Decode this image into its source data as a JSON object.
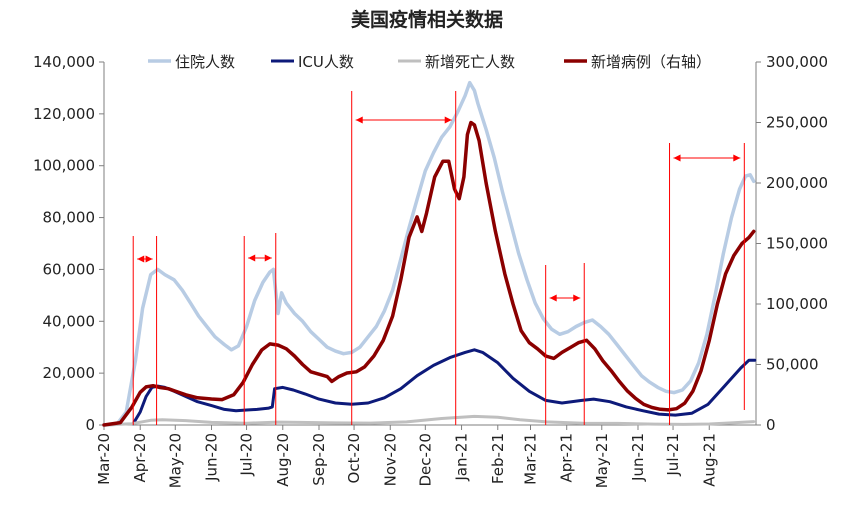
{
  "chart_data": {
    "type": "line",
    "title": "美国疫情相关数据",
    "x_ticks": [
      "Mar-20",
      "Apr-20",
      "May-20",
      "Jun-20",
      "Jul-20",
      "Aug-20",
      "Sep-20",
      "Oct-20",
      "Nov-20",
      "Dec-20",
      "Jan-21",
      "Feb-21",
      "Mar-21",
      "Apr-21",
      "May-21",
      "Jun-21",
      "Jul-21",
      "Aug-21"
    ],
    "x_range": [
      "2020-03-01",
      "2021-09-10"
    ],
    "y_left": {
      "range": [
        0,
        140000
      ],
      "ticks": [
        "0",
        "20,000",
        "40,000",
        "60,000",
        "80,000",
        "100,000",
        "120,000",
        "140,000"
      ]
    },
    "y_right": {
      "range": [
        0,
        300000
      ],
      "ticks": [
        "0",
        "50,000",
        "100,000",
        "150,000",
        "200,000",
        "250,000",
        "300,000"
      ]
    },
    "legend_position": "top",
    "grid": false,
    "series": [
      {
        "name": "住院人数",
        "axis": "left",
        "color": "#b8cce4",
        "width": 3.5,
        "points": [
          [
            "2020-03-01",
            0
          ],
          [
            "2020-03-12",
            300
          ],
          [
            "2020-03-20",
            5000
          ],
          [
            "2020-03-28",
            25000
          ],
          [
            "2020-04-03",
            45000
          ],
          [
            "2020-04-10",
            58000
          ],
          [
            "2020-04-16",
            60000
          ],
          [
            "2020-04-22",
            58000
          ],
          [
            "2020-04-30",
            56000
          ],
          [
            "2020-05-07",
            52000
          ],
          [
            "2020-05-14",
            47000
          ],
          [
            "2020-05-21",
            42000
          ],
          [
            "2020-05-28",
            38000
          ],
          [
            "2020-06-04",
            34000
          ],
          [
            "2020-06-12",
            31000
          ],
          [
            "2020-06-18",
            29000
          ],
          [
            "2020-06-24",
            30500
          ],
          [
            "2020-07-01",
            38000
          ],
          [
            "2020-07-08",
            48000
          ],
          [
            "2020-07-15",
            55000
          ],
          [
            "2020-07-21",
            59000
          ],
          [
            "2020-07-24",
            60000
          ],
          [
            "2020-07-28",
            43000
          ],
          [
            "2020-07-31",
            51000
          ],
          [
            "2020-08-04",
            47000
          ],
          [
            "2020-08-11",
            43000
          ],
          [
            "2020-08-18",
            40000
          ],
          [
            "2020-08-25",
            36000
          ],
          [
            "2020-09-01",
            33000
          ],
          [
            "2020-09-08",
            30000
          ],
          [
            "2020-09-15",
            28500
          ],
          [
            "2020-09-22",
            27500
          ],
          [
            "2020-09-29",
            28000
          ],
          [
            "2020-10-06",
            30000
          ],
          [
            "2020-10-13",
            34000
          ],
          [
            "2020-10-20",
            38000
          ],
          [
            "2020-10-27",
            44000
          ],
          [
            "2020-11-03",
            52000
          ],
          [
            "2020-11-10",
            64000
          ],
          [
            "2020-11-17",
            76000
          ],
          [
            "2020-11-24",
            87000
          ],
          [
            "2020-12-01",
            98000
          ],
          [
            "2020-12-08",
            105000
          ],
          [
            "2020-12-15",
            111000
          ],
          [
            "2020-12-22",
            115000
          ],
          [
            "2020-12-29",
            121000
          ],
          [
            "2021-01-04",
            127000
          ],
          [
            "2021-01-08",
            132000
          ],
          [
            "2021-01-12",
            129000
          ],
          [
            "2021-01-15",
            124000
          ],
          [
            "2021-01-22",
            114000
          ],
          [
            "2021-01-29",
            103000
          ],
          [
            "2021-02-05",
            90000
          ],
          [
            "2021-02-12",
            78000
          ],
          [
            "2021-02-19",
            66000
          ],
          [
            "2021-02-26",
            56000
          ],
          [
            "2021-03-05",
            47000
          ],
          [
            "2021-03-12",
            41000
          ],
          [
            "2021-03-19",
            37000
          ],
          [
            "2021-03-26",
            35000
          ],
          [
            "2021-04-02",
            36000
          ],
          [
            "2021-04-09",
            38000
          ],
          [
            "2021-04-16",
            39500
          ],
          [
            "2021-04-23",
            40500
          ],
          [
            "2021-04-30",
            38000
          ],
          [
            "2021-05-07",
            35000
          ],
          [
            "2021-05-14",
            31000
          ],
          [
            "2021-05-21",
            27000
          ],
          [
            "2021-05-28",
            23000
          ],
          [
            "2021-06-04",
            19000
          ],
          [
            "2021-06-11",
            16500
          ],
          [
            "2021-06-18",
            14500
          ],
          [
            "2021-06-25",
            13000
          ],
          [
            "2021-07-02",
            12500
          ],
          [
            "2021-07-09",
            13500
          ],
          [
            "2021-07-16",
            17000
          ],
          [
            "2021-07-23",
            24000
          ],
          [
            "2021-07-30",
            35000
          ],
          [
            "2021-08-06",
            50000
          ],
          [
            "2021-08-13",
            66000
          ],
          [
            "2021-08-20",
            80000
          ],
          [
            "2021-08-27",
            91000
          ],
          [
            "2021-09-01",
            96000
          ],
          [
            "2021-09-05",
            96500
          ],
          [
            "2021-09-08",
            94000
          ]
        ]
      },
      {
        "name": "ICU人数",
        "axis": "left",
        "color": "#0d1a7a",
        "width": 3,
        "points": [
          [
            "2020-03-26",
            500
          ],
          [
            "2020-04-01",
            5000
          ],
          [
            "2020-04-06",
            11000
          ],
          [
            "2020-04-11",
            14500
          ],
          [
            "2020-04-16",
            15000
          ],
          [
            "2020-04-22",
            14500
          ],
          [
            "2020-04-30",
            13000
          ],
          [
            "2020-05-10",
            11000
          ],
          [
            "2020-05-20",
            9000
          ],
          [
            "2020-06-01",
            7500
          ],
          [
            "2020-06-12",
            6000
          ],
          [
            "2020-06-22",
            5500
          ],
          [
            "2020-07-01",
            5800
          ],
          [
            "2020-07-10",
            6000
          ],
          [
            "2020-07-20",
            6500
          ],
          [
            "2020-07-23",
            7000
          ],
          [
            "2020-07-25",
            14000
          ],
          [
            "2020-08-01",
            14500
          ],
          [
            "2020-08-10",
            13500
          ],
          [
            "2020-08-20",
            12000
          ],
          [
            "2020-09-01",
            10000
          ],
          [
            "2020-09-15",
            8500
          ],
          [
            "2020-09-29",
            8000
          ],
          [
            "2020-10-13",
            8500
          ],
          [
            "2020-10-27",
            10500
          ],
          [
            "2020-11-10",
            14000
          ],
          [
            "2020-11-24",
            19000
          ],
          [
            "2020-12-08",
            23000
          ],
          [
            "2020-12-22",
            26000
          ],
          [
            "2021-01-04",
            28000
          ],
          [
            "2021-01-12",
            29000
          ],
          [
            "2021-01-19",
            28000
          ],
          [
            "2021-02-01",
            24000
          ],
          [
            "2021-02-14",
            18000
          ],
          [
            "2021-02-28",
            13000
          ],
          [
            "2021-03-14",
            9500
          ],
          [
            "2021-03-28",
            8500
          ],
          [
            "2021-04-14",
            9500
          ],
          [
            "2021-04-24",
            10000
          ],
          [
            "2021-05-08",
            9000
          ],
          [
            "2021-05-22",
            7000
          ],
          [
            "2021-06-05",
            5500
          ],
          [
            "2021-06-19",
            4200
          ],
          [
            "2021-07-03",
            3800
          ],
          [
            "2021-07-17",
            4500
          ],
          [
            "2021-07-31",
            8000
          ],
          [
            "2021-08-14",
            15000
          ],
          [
            "2021-08-28",
            22000
          ],
          [
            "2021-09-04",
            25000
          ],
          [
            "2021-09-09",
            25000
          ]
        ]
      },
      {
        "name": "新增死亡人数",
        "axis": "left",
        "color": "#bfbfbf",
        "width": 3,
        "points": [
          [
            "2020-03-01",
            0
          ],
          [
            "2020-03-25",
            500
          ],
          [
            "2020-04-10",
            1800
          ],
          [
            "2020-04-20",
            2000
          ],
          [
            "2020-05-10",
            1700
          ],
          [
            "2020-06-01",
            1000
          ],
          [
            "2020-07-01",
            700
          ],
          [
            "2020-07-28",
            1100
          ],
          [
            "2020-08-15",
            1000
          ],
          [
            "2020-09-15",
            800
          ],
          [
            "2020-10-15",
            750
          ],
          [
            "2020-11-15",
            1200
          ],
          [
            "2020-12-15",
            2500
          ],
          [
            "2021-01-12",
            3300
          ],
          [
            "2021-02-01",
            3000
          ],
          [
            "2021-02-20",
            2000
          ],
          [
            "2021-03-15",
            1200
          ],
          [
            "2021-04-15",
            700
          ],
          [
            "2021-05-15",
            600
          ],
          [
            "2021-06-15",
            350
          ],
          [
            "2021-07-10",
            250
          ],
          [
            "2021-08-01",
            400
          ],
          [
            "2021-08-20",
            800
          ],
          [
            "2021-09-08",
            1300
          ]
        ]
      },
      {
        "name": "新增病例（右轴）",
        "axis": "right",
        "color": "#8b0000",
        "width": 3.5,
        "points": [
          [
            "2020-03-01",
            0
          ],
          [
            "2020-03-15",
            2000
          ],
          [
            "2020-03-25",
            15000
          ],
          [
            "2020-04-01",
            27000
          ],
          [
            "2020-04-06",
            31500
          ],
          [
            "2020-04-12",
            32500
          ],
          [
            "2020-04-18",
            31000
          ],
          [
            "2020-04-25",
            30000
          ],
          [
            "2020-05-01",
            28000
          ],
          [
            "2020-05-10",
            25000
          ],
          [
            "2020-05-20",
            22500
          ],
          [
            "2020-06-01",
            21500
          ],
          [
            "2020-06-10",
            21000
          ],
          [
            "2020-06-20",
            25000
          ],
          [
            "2020-06-28",
            35000
          ],
          [
            "2020-07-06",
            50000
          ],
          [
            "2020-07-14",
            62000
          ],
          [
            "2020-07-21",
            67000
          ],
          [
            "2020-07-28",
            66000
          ],
          [
            "2020-08-04",
            63000
          ],
          [
            "2020-08-11",
            57000
          ],
          [
            "2020-08-18",
            50000
          ],
          [
            "2020-08-25",
            44000
          ],
          [
            "2020-09-01",
            42000
          ],
          [
            "2020-09-08",
            40000
          ],
          [
            "2020-09-12",
            36000
          ],
          [
            "2020-09-18",
            40000
          ],
          [
            "2020-09-25",
            43000
          ],
          [
            "2020-10-03",
            44000
          ],
          [
            "2020-10-10",
            48000
          ],
          [
            "2020-10-18",
            57000
          ],
          [
            "2020-10-26",
            70000
          ],
          [
            "2020-11-03",
            90000
          ],
          [
            "2020-11-10",
            120000
          ],
          [
            "2020-11-17",
            155000
          ],
          [
            "2020-11-24",
            172000
          ],
          [
            "2020-11-28",
            160000
          ],
          [
            "2020-12-02",
            175000
          ],
          [
            "2020-12-09",
            205000
          ],
          [
            "2020-12-16",
            218000
          ],
          [
            "2020-12-21",
            218000
          ],
          [
            "2020-12-26",
            195000
          ],
          [
            "2020-12-30",
            187000
          ],
          [
            "2021-01-03",
            205000
          ],
          [
            "2021-01-06",
            240000
          ],
          [
            "2021-01-09",
            250000
          ],
          [
            "2021-01-12",
            248000
          ],
          [
            "2021-01-16",
            235000
          ],
          [
            "2021-01-22",
            200000
          ],
          [
            "2021-01-30",
            160000
          ],
          [
            "2021-02-07",
            125000
          ],
          [
            "2021-02-14",
            100000
          ],
          [
            "2021-02-21",
            78000
          ],
          [
            "2021-02-28",
            68000
          ],
          [
            "2021-03-07",
            63000
          ],
          [
            "2021-03-14",
            57000
          ],
          [
            "2021-03-21",
            55000
          ],
          [
            "2021-03-28",
            60000
          ],
          [
            "2021-04-04",
            64000
          ],
          [
            "2021-04-11",
            68000
          ],
          [
            "2021-04-18",
            70000
          ],
          [
            "2021-04-25",
            63000
          ],
          [
            "2021-05-02",
            53000
          ],
          [
            "2021-05-09",
            45000
          ],
          [
            "2021-05-16",
            36000
          ],
          [
            "2021-05-23",
            28000
          ],
          [
            "2021-05-30",
            22000
          ],
          [
            "2021-06-06",
            17000
          ],
          [
            "2021-06-13",
            14500
          ],
          [
            "2021-06-20",
            13000
          ],
          [
            "2021-06-27",
            12500
          ],
          [
            "2021-07-04",
            13500
          ],
          [
            "2021-07-11",
            18000
          ],
          [
            "2021-07-18",
            28000
          ],
          [
            "2021-07-25",
            45000
          ],
          [
            "2021-08-01",
            70000
          ],
          [
            "2021-08-08",
            100000
          ],
          [
            "2021-08-15",
            125000
          ],
          [
            "2021-08-22",
            140000
          ],
          [
            "2021-08-29",
            150000
          ],
          [
            "2021-09-04",
            155000
          ],
          [
            "2021-09-08",
            160000
          ]
        ]
      }
    ],
    "annotations": {
      "color": "#ff0000",
      "vertical_lines": [
        "2020-03-26",
        "2020-04-15",
        "2020-06-29",
        "2020-07-26",
        "2020-09-29",
        "2020-12-27",
        "2021-03-14",
        "2021-04-16",
        "2021-06-28",
        "2021-08-31"
      ],
      "arrows": [
        [
          "2020-03-26",
          "2020-04-15"
        ],
        [
          "2020-06-29",
          "2020-07-26"
        ],
        [
          "2020-09-29",
          "2020-12-27"
        ],
        [
          "2021-03-14",
          "2021-04-16"
        ],
        [
          "2021-06-28",
          "2021-08-31"
        ]
      ]
    }
  }
}
